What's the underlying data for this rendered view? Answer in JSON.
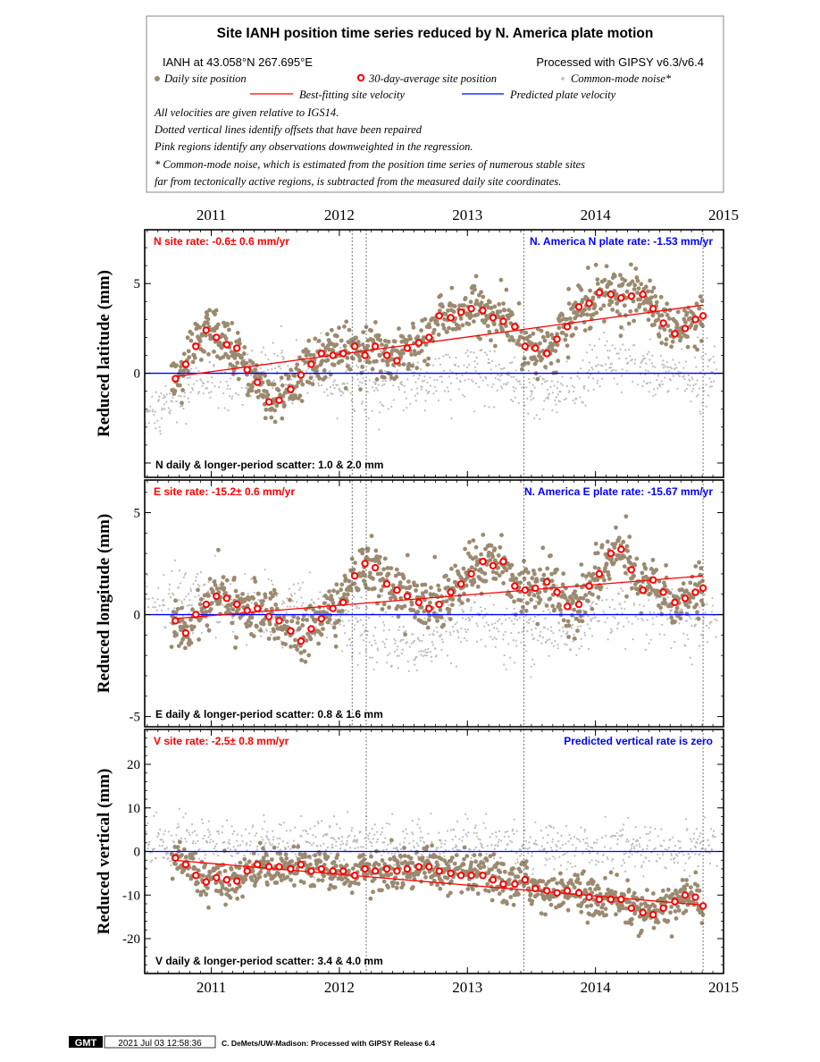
{
  "legend": {
    "title": "Site IANH position time series reduced by N. America plate motion",
    "site_coords": "IANH at 43.058°N 267.695°E",
    "processing": "Processed with GIPSY v6.3/v6.4",
    "daily_label": "Daily site position",
    "avg_label": "30-day-average site position",
    "cm_label": "Common-mode noise*",
    "fit_label": "Best-fitting site velocity",
    "pred_label": "Predicted plate velocity",
    "note1": "All velocities are given relative to IGS14.",
    "note2": "Dotted vertical lines identify offsets that have been repaired",
    "note3": "Pink regions identify any observations downweighted in the regression.",
    "note4": "* Common-mode noise, which is estimated from the position time series of numerous stable sites",
    "note5": "far from tectonically active regions, is subtracted from the measured daily site coordinates."
  },
  "colors": {
    "daily": "#9b8a70",
    "common_mode": "#bbbbbb",
    "fit": "#ff0000",
    "plate": "#0000ff",
    "avg_stroke": "#ff0000",
    "frame": "#000000"
  },
  "footer": {
    "logo": "GMT",
    "timestamp": "2021 Jul 03 12:58:36",
    "credit": "C. DeMets/UW-Madison: Processed with GIPSY Release 6.4"
  },
  "chart_data": [
    {
      "type": "scatter",
      "component": "N",
      "ylabel": "Reduced latitude (mm)",
      "rate_text": "N site rate:  -0.6± 0.6 mm/yr",
      "plate_text": "N. America N plate rate: -1.53 mm/yr",
      "scatter_text": "N daily & longer-period scatter:   1.0 &   2.0 mm",
      "x_ticks": [
        2011,
        2012,
        2013,
        2014,
        2015
      ],
      "xlim": [
        2010.48,
        2015.0
      ],
      "ylim": [
        -5.8,
        8.0
      ],
      "y_ticks": [
        -5,
        0,
        5
      ],
      "y_tick_labels": [
        "",
        "0",
        "5"
      ],
      "offset_lines": [
        2012.1,
        2012.21,
        2013.44,
        2014.84
      ],
      "fit_line": {
        "x": [
          2010.7,
          2014.84
        ],
        "y": [
          -0.2,
          3.8
        ]
      },
      "plate_line": {
        "y": 0
      },
      "avg_points": {
        "x": [
          2010.72,
          2010.8,
          2010.88,
          2010.96,
          2011.04,
          2011.12,
          2011.2,
          2011.28,
          2011.36,
          2011.45,
          2011.53,
          2011.62,
          2011.7,
          2011.78,
          2011.86,
          2011.95,
          2012.03,
          2012.12,
          2012.2,
          2012.28,
          2012.37,
          2012.45,
          2012.53,
          2012.62,
          2012.7,
          2012.78,
          2012.87,
          2012.95,
          2013.03,
          2013.12,
          2013.2,
          2013.28,
          2013.37,
          2013.45,
          2013.53,
          2013.62,
          2013.7,
          2013.78,
          2013.87,
          2013.95,
          2014.03,
          2014.12,
          2014.2,
          2014.28,
          2014.37,
          2014.45,
          2014.53,
          2014.62,
          2014.7,
          2014.78,
          2014.84
        ],
        "y": [
          -0.3,
          0.5,
          1.5,
          2.4,
          2.0,
          1.6,
          1.4,
          0.2,
          -0.5,
          -1.6,
          -1.5,
          -0.9,
          -0.1,
          0.5,
          1.1,
          1.0,
          1.1,
          1.5,
          1.0,
          1.5,
          1.0,
          0.7,
          1.4,
          1.7,
          2.0,
          3.2,
          3.1,
          3.4,
          3.6,
          3.5,
          3.1,
          2.9,
          2.6,
          1.5,
          1.4,
          1.1,
          1.9,
          2.6,
          3.7,
          3.9,
          4.5,
          4.4,
          4.2,
          4.3,
          4.4,
          3.6,
          2.8,
          2.2,
          2.5,
          3.0,
          3.2
        ]
      },
      "daily_noise": 0.9,
      "cm_base": {
        "x": [
          2010.48,
          2010.7,
          2010.9,
          2011.3,
          2011.7,
          2012.0,
          2012.4,
          2012.8,
          2013.2,
          2013.5,
          2013.8,
          2014.1,
          2014.4,
          2014.7,
          2014.95
        ],
        "y": [
          -2.5,
          -1.5,
          -0.5,
          0.2,
          0.2,
          -0.2,
          -0.5,
          -0.3,
          0.2,
          -0.8,
          -1.2,
          0.5,
          0.2,
          -0.2,
          0.5
        ]
      }
    },
    {
      "type": "scatter",
      "component": "E",
      "ylabel": "Reduced longitude (mm)",
      "rate_text": "E site rate: -15.2± 0.6 mm/yr",
      "plate_text": "N. America E plate rate: -15.67 mm/yr",
      "scatter_text": "E daily & longer-period scatter:   0.8 &   1.6 mm",
      "x_ticks": [
        2011,
        2012,
        2013,
        2014,
        2015
      ],
      "xlim": [
        2010.48,
        2015.0
      ],
      "ylim": [
        -5.5,
        6.6
      ],
      "y_ticks": [
        -5,
        0,
        5
      ],
      "y_tick_labels": [
        "-5",
        "0",
        "5"
      ],
      "offset_lines": [
        2012.1,
        2012.21,
        2013.44,
        2014.84
      ],
      "fit_line": {
        "x": [
          2010.7,
          2014.84
        ],
        "y": [
          -0.2,
          1.9
        ]
      },
      "plate_line": {
        "y": 0
      },
      "avg_points": {
        "x": [
          2010.72,
          2010.8,
          2010.88,
          2010.96,
          2011.04,
          2011.12,
          2011.2,
          2011.28,
          2011.36,
          2011.45,
          2011.53,
          2011.62,
          2011.7,
          2011.78,
          2011.86,
          2011.95,
          2012.03,
          2012.12,
          2012.2,
          2012.28,
          2012.37,
          2012.45,
          2012.53,
          2012.62,
          2012.7,
          2012.78,
          2012.87,
          2012.95,
          2013.03,
          2013.12,
          2013.2,
          2013.28,
          2013.37,
          2013.45,
          2013.53,
          2013.62,
          2013.7,
          2013.78,
          2013.87,
          2013.95,
          2014.03,
          2014.12,
          2014.2,
          2014.28,
          2014.37,
          2014.45,
          2014.53,
          2014.62,
          2014.7,
          2014.78,
          2014.84
        ],
        "y": [
          -0.3,
          -0.9,
          0.0,
          0.5,
          0.9,
          0.8,
          0.5,
          0.2,
          0.3,
          -0.1,
          -0.3,
          -0.8,
          -1.3,
          -0.7,
          -0.2,
          0.3,
          0.6,
          1.9,
          2.5,
          2.3,
          1.5,
          1.2,
          0.9,
          0.6,
          0.3,
          0.5,
          1.1,
          1.5,
          2.0,
          2.6,
          2.4,
          2.6,
          1.4,
          1.2,
          1.3,
          1.6,
          1.1,
          0.4,
          0.5,
          1.4,
          2.0,
          3.0,
          3.2,
          2.2,
          1.2,
          1.7,
          1.1,
          0.6,
          0.8,
          1.1,
          1.3
        ]
      },
      "daily_noise": 0.85,
      "cm_base": {
        "x": [
          2010.48,
          2010.8,
          2011.2,
          2011.6,
          2012.0,
          2012.3,
          2012.6,
          2013.0,
          2013.4,
          2013.8,
          2014.2,
          2014.6,
          2014.95
        ],
        "y": [
          0.3,
          0.6,
          0.4,
          0.2,
          0.1,
          -1.2,
          -1.5,
          -0.2,
          -0.8,
          -0.6,
          0.4,
          0.0,
          -0.4
        ]
      }
    },
    {
      "type": "scatter",
      "component": "V",
      "ylabel": "Reduced vertical (mm)",
      "rate_text": "V site rate:  -2.5± 0.8 mm/yr",
      "plate_text": "Predicted vertical rate is zero",
      "scatter_text": "V daily & longer-period scatter:   3.4 &   4.0 mm",
      "x_ticks": [
        2011,
        2012,
        2013,
        2014,
        2015
      ],
      "xlim": [
        2010.48,
        2015.0
      ],
      "ylim": [
        -28.0,
        28.0
      ],
      "y_ticks": [
        -20,
        -10,
        0,
        10,
        20
      ],
      "y_tick_labels": [
        "-20",
        "-10",
        "0",
        "10",
        "20"
      ],
      "offset_lines": [
        2012.21,
        2013.44,
        2014.84
      ],
      "fit_line": {
        "x": [
          2010.7,
          2014.84
        ],
        "y": [
          -2.0,
          -12.3
        ]
      },
      "plate_line": {
        "y": 0
      },
      "avg_points": {
        "x": [
          2010.72,
          2010.8,
          2010.88,
          2010.96,
          2011.04,
          2011.12,
          2011.2,
          2011.28,
          2011.36,
          2011.45,
          2011.53,
          2011.62,
          2011.7,
          2011.78,
          2011.86,
          2011.95,
          2012.03,
          2012.12,
          2012.2,
          2012.28,
          2012.37,
          2012.45,
          2012.53,
          2012.62,
          2012.7,
          2012.78,
          2012.87,
          2012.95,
          2013.03,
          2013.12,
          2013.2,
          2013.28,
          2013.37,
          2013.45,
          2013.53,
          2013.62,
          2013.7,
          2013.78,
          2013.87,
          2013.95,
          2014.03,
          2014.12,
          2014.2,
          2014.28,
          2014.37,
          2014.45,
          2014.53,
          2014.62,
          2014.7,
          2014.78,
          2014.84
        ],
        "y": [
          -1.5,
          -3.0,
          -5.5,
          -7.0,
          -6.0,
          -6.5,
          -6.8,
          -4.5,
          -3.0,
          -3.5,
          -3.5,
          -4.0,
          -3.0,
          -4.5,
          -4.0,
          -4.5,
          -4.5,
          -5.5,
          -4.0,
          -4.5,
          -4.0,
          -4.5,
          -4.0,
          -3.5,
          -3.5,
          -4.5,
          -5.0,
          -5.5,
          -5.5,
          -5.5,
          -6.5,
          -7.5,
          -7.5,
          -6.5,
          -8.5,
          -9.0,
          -9.5,
          -9.0,
          -9.5,
          -10.5,
          -11.0,
          -11.0,
          -11.0,
          -13.0,
          -14.0,
          -14.5,
          -13.0,
          -11.5,
          -10.0,
          -10.5,
          -12.5
        ]
      },
      "daily_noise": 3.0,
      "cm_base": {
        "x": [
          2010.48,
          2011.0,
          2011.5,
          2012.0,
          2012.5,
          2013.0,
          2013.5,
          2014.0,
          2014.5,
          2014.95
        ],
        "y": [
          1.5,
          2.0,
          2.0,
          1.5,
          1.0,
          1.5,
          0.5,
          1.0,
          1.0,
          1.5
        ]
      }
    }
  ]
}
